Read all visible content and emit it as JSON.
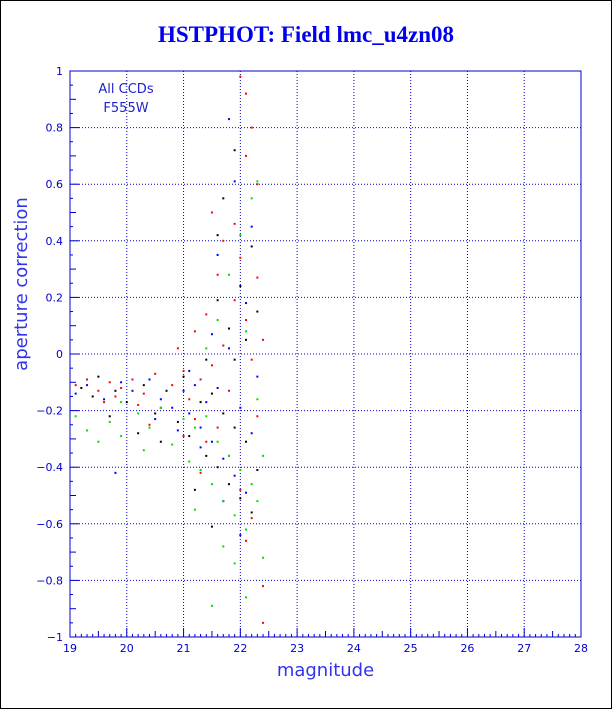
{
  "title": "HSTPHOT: Field lmc_u4zn08",
  "annotation": [
    "All CCDs",
    "F555W"
  ],
  "colors": {
    "axis": "#0000cc",
    "grid": "#0000cc",
    "title": "#0000ee",
    "label": "#3333ee"
  },
  "chart_data": {
    "type": "scatter",
    "title": "HSTPHOT: Field lmc_u4zn08",
    "xlabel": "magnitude",
    "ylabel": "aperture correction",
    "xlim": [
      19,
      28
    ],
    "ylim": [
      -1,
      1
    ],
    "x_ticks": [
      19,
      20,
      21,
      22,
      23,
      24,
      25,
      26,
      27,
      28
    ],
    "y_ticks": [
      -1,
      -0.8,
      -0.6,
      -0.4,
      -0.2,
      0,
      0.2,
      0.4,
      0.6,
      0.8,
      1
    ],
    "x_tick_labels": [
      "19",
      "20",
      "21",
      "22",
      "23",
      "24",
      "25",
      "26",
      "27",
      "28"
    ],
    "y_tick_labels": [
      "−1",
      "−0.8",
      "−0.6",
      "−0.4",
      "−0.2",
      "0",
      "0.2",
      "0.4",
      "0.6",
      "0.8",
      "1"
    ],
    "grid": true,
    "legend": "none",
    "series": [
      {
        "color": "#ff0000",
        "points": [
          [
            19.1,
            -0.11
          ],
          [
            19.3,
            -0.09
          ],
          [
            19.5,
            -0.13
          ],
          [
            19.7,
            -0.1
          ],
          [
            19.9,
            -0.12
          ],
          [
            20.1,
            -0.09
          ],
          [
            20.3,
            -0.14
          ],
          [
            20.5,
            -0.07
          ],
          [
            20.6,
            -0.19
          ],
          [
            20.8,
            -0.11
          ],
          [
            20.9,
            0.02
          ],
          [
            21.0,
            -0.06
          ],
          [
            21.1,
            -0.16
          ],
          [
            21.2,
            0.08
          ],
          [
            21.3,
            -0.09
          ],
          [
            21.4,
            0.14
          ],
          [
            21.5,
            -0.04
          ],
          [
            21.6,
            0.28
          ],
          [
            21.7,
            0.03
          ],
          [
            21.8,
            -0.13
          ],
          [
            21.9,
            0.46
          ],
          [
            22.0,
            0.34
          ],
          [
            22.1,
            0.12
          ],
          [
            22.2,
            -0.02
          ],
          [
            22.3,
            -0.22
          ],
          [
            22.4,
            0.05
          ],
          [
            22.0,
            0.98
          ],
          [
            22.1,
            0.92
          ],
          [
            22.2,
            0.8
          ],
          [
            22.3,
            0.6
          ],
          [
            21.5,
            0.5
          ],
          [
            21.7,
            0.4
          ],
          [
            22.1,
            0.7
          ],
          [
            21.6,
            -0.26
          ],
          [
            21.8,
            -0.36
          ],
          [
            22.0,
            -0.48
          ],
          [
            22.2,
            -0.58
          ],
          [
            22.4,
            -0.82
          ],
          [
            21.4,
            -0.31
          ],
          [
            21.2,
            -0.23
          ],
          [
            20.4,
            -0.25
          ],
          [
            20.2,
            -0.18
          ],
          [
            19.8,
            -0.15
          ],
          [
            19.6,
            -0.17
          ],
          [
            21.9,
            0.19
          ],
          [
            22.3,
            0.27
          ],
          [
            21.3,
            -0.42
          ],
          [
            22.1,
            -0.66
          ],
          [
            22.4,
            -0.95
          ],
          [
            21.0,
            -0.29
          ]
        ]
      },
      {
        "color": "#000000",
        "points": [
          [
            19.2,
            -0.12
          ],
          [
            19.4,
            -0.15
          ],
          [
            19.5,
            -0.08
          ],
          [
            19.8,
            -0.13
          ],
          [
            20.0,
            -0.17
          ],
          [
            20.3,
            -0.11
          ],
          [
            20.5,
            -0.21
          ],
          [
            20.7,
            -0.13
          ],
          [
            20.9,
            -0.24
          ],
          [
            21.0,
            -0.08
          ],
          [
            21.1,
            -0.29
          ],
          [
            21.3,
            -0.17
          ],
          [
            21.4,
            -0.36
          ],
          [
            21.5,
            -0.14
          ],
          [
            21.6,
            -0.4
          ],
          [
            21.7,
            -0.21
          ],
          [
            21.8,
            -0.46
          ],
          [
            21.9,
            -0.26
          ],
          [
            22.0,
            -0.51
          ],
          [
            22.1,
            -0.31
          ],
          [
            22.2,
            -0.56
          ],
          [
            21.6,
            0.19
          ],
          [
            21.8,
            0.09
          ],
          [
            22.0,
            0.24
          ],
          [
            21.7,
            0.55
          ],
          [
            21.9,
            0.72
          ],
          [
            21.6,
            0.42
          ],
          [
            22.2,
            0.38
          ],
          [
            21.2,
            -0.48
          ],
          [
            21.5,
            -0.61
          ],
          [
            22.3,
            -0.41
          ],
          [
            20.6,
            -0.31
          ],
          [
            20.2,
            -0.28
          ],
          [
            19.7,
            -0.22
          ],
          [
            21.9,
            -0.02
          ],
          [
            22.1,
            0.05
          ],
          [
            21.4,
            -0.02
          ],
          [
            22.3,
            0.15
          ]
        ]
      },
      {
        "color": "#0000ff",
        "points": [
          [
            19.1,
            -0.14
          ],
          [
            19.3,
            -0.11
          ],
          [
            19.6,
            -0.16
          ],
          [
            19.9,
            -0.1
          ],
          [
            20.1,
            -0.13
          ],
          [
            20.4,
            -0.09
          ],
          [
            20.6,
            -0.16
          ],
          [
            20.8,
            -0.19
          ],
          [
            21.0,
            -0.13
          ],
          [
            21.1,
            -0.21
          ],
          [
            21.2,
            -0.11
          ],
          [
            21.3,
            -0.26
          ],
          [
            21.4,
            -0.17
          ],
          [
            21.5,
            -0.31
          ],
          [
            21.6,
            -0.12
          ],
          [
            21.7,
            -0.37
          ],
          [
            21.8,
            0.02
          ],
          [
            21.9,
            -0.43
          ],
          [
            22.0,
            -0.19
          ],
          [
            22.1,
            -0.49
          ],
          [
            22.2,
            -0.28
          ],
          [
            21.8,
            0.83
          ],
          [
            21.9,
            0.61
          ],
          [
            21.6,
            0.35
          ],
          [
            22.1,
            0.18
          ],
          [
            21.7,
            -0.52
          ],
          [
            22.0,
            -0.64
          ],
          [
            21.3,
            -0.33
          ],
          [
            21.1,
            -0.06
          ],
          [
            20.9,
            -0.27
          ],
          [
            20.5,
            -0.23
          ],
          [
            19.8,
            -0.42
          ],
          [
            22.3,
            -0.08
          ],
          [
            21.5,
            0.07
          ],
          [
            22.2,
            0.45
          ]
        ]
      },
      {
        "color": "#00dd00",
        "points": [
          [
            19.1,
            -0.22
          ],
          [
            19.3,
            -0.27
          ],
          [
            19.5,
            -0.31
          ],
          [
            19.7,
            -0.24
          ],
          [
            19.9,
            -0.29
          ],
          [
            20.2,
            -0.21
          ],
          [
            20.4,
            -0.26
          ],
          [
            20.6,
            -0.19
          ],
          [
            20.8,
            -0.32
          ],
          [
            21.0,
            -0.23
          ],
          [
            21.1,
            -0.38
          ],
          [
            21.2,
            -0.26
          ],
          [
            21.3,
            -0.41
          ],
          [
            21.4,
            -0.22
          ],
          [
            21.5,
            -0.46
          ],
          [
            21.6,
            -0.31
          ],
          [
            21.7,
            -0.52
          ],
          [
            21.8,
            -0.36
          ],
          [
            21.9,
            -0.57
          ],
          [
            22.0,
            -0.41
          ],
          [
            22.1,
            -0.62
          ],
          [
            22.2,
            -0.46
          ],
          [
            22.3,
            -0.52
          ],
          [
            22.4,
            -0.36
          ],
          [
            21.6,
            0.12
          ],
          [
            21.8,
            0.28
          ],
          [
            22.0,
            0.42
          ],
          [
            22.2,
            0.55
          ],
          [
            22.3,
            0.61
          ],
          [
            21.7,
            -0.68
          ],
          [
            21.9,
            -0.74
          ],
          [
            22.1,
            -0.86
          ],
          [
            21.5,
            -0.89
          ],
          [
            22.3,
            -0.16
          ],
          [
            21.4,
            0.02
          ],
          [
            22.1,
            0.08
          ],
          [
            20.3,
            -0.34
          ],
          [
            19.9,
            -0.17
          ],
          [
            21.2,
            -0.55
          ],
          [
            22.4,
            -0.72
          ]
        ]
      }
    ]
  }
}
